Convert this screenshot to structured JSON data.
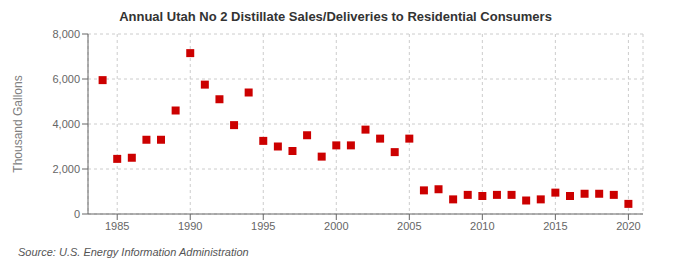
{
  "chart_data": {
    "type": "scatter",
    "title": "Annual Utah No 2 Distillate Sales/Deliveries to Residential Consumers",
    "ylabel": "Thousand Gallons",
    "source": "Source: U.S. Energy Information Administration",
    "color": "#cc0000",
    "marker": "square",
    "grid": true,
    "xlim": [
      1983,
      2021
    ],
    "ylim": [
      0,
      8000
    ],
    "xticks": [
      1985,
      1990,
      1995,
      2000,
      2005,
      2010,
      2015,
      2020
    ],
    "yticks": [
      0,
      {
        "value": 2000,
        "label": "2,000"
      },
      {
        "value": 4000,
        "label": "4,000"
      },
      {
        "value": 6000,
        "label": "6,000"
      },
      {
        "value": 8000,
        "label": "8,000"
      }
    ],
    "x": [
      1984,
      1985,
      1986,
      1987,
      1988,
      1989,
      1990,
      1991,
      1992,
      1993,
      1994,
      1995,
      1996,
      1997,
      1998,
      1999,
      2000,
      2001,
      2002,
      2003,
      2004,
      2005,
      2006,
      2007,
      2008,
      2009,
      2010,
      2011,
      2012,
      2013,
      2014,
      2015,
      2016,
      2017,
      2018,
      2019,
      2020
    ],
    "values": [
      5950,
      2450,
      2500,
      3300,
      3300,
      4600,
      7150,
      5750,
      5100,
      3950,
      5400,
      3250,
      3000,
      2800,
      3500,
      2550,
      3050,
      3050,
      3750,
      3350,
      2750,
      3350,
      1050,
      1100,
      650,
      850,
      800,
      850,
      850,
      600,
      650,
      950,
      800,
      900,
      900,
      850,
      450
    ]
  }
}
